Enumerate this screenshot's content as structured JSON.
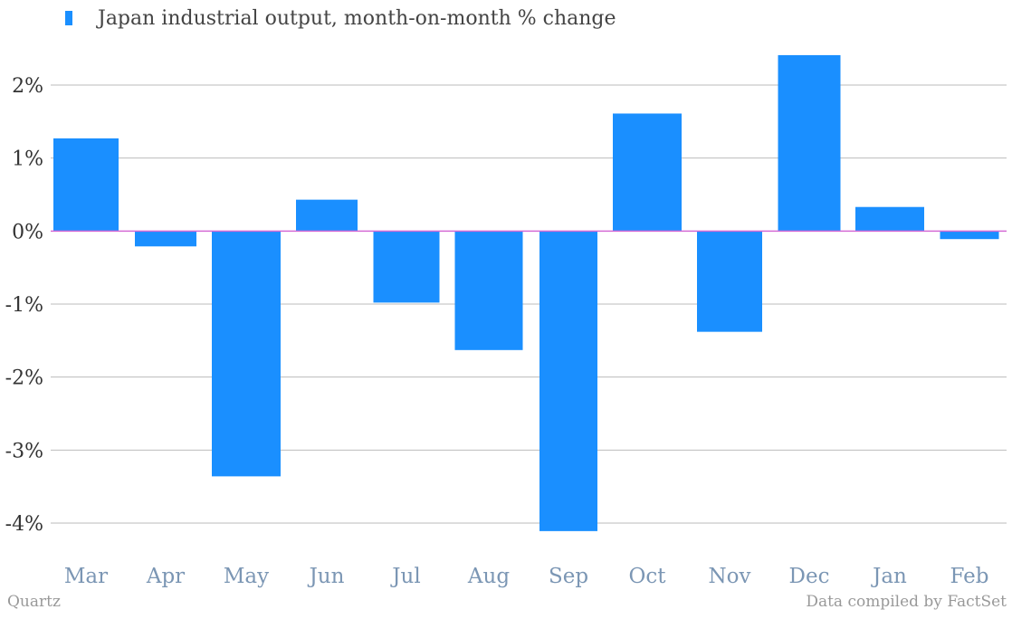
{
  "chart_data": {
    "type": "bar",
    "categories": [
      "Mar",
      "Apr",
      "May",
      "Jun",
      "Jul",
      "Aug",
      "Sep",
      "Oct",
      "Nov",
      "Dec",
      "Jan",
      "Feb"
    ],
    "series": [
      {
        "name": "Japan industrial output, month-on-month % change",
        "values": [
          1.27,
          -0.21,
          -3.36,
          0.43,
          -0.98,
          -1.63,
          -4.11,
          1.61,
          -1.38,
          2.41,
          0.33,
          -0.11
        ]
      }
    ],
    "ylim": [
      -4.4,
      2.6
    ],
    "yticks": [
      2,
      1,
      0,
      -1,
      -2,
      -3,
      -4
    ],
    "ytick_labels": [
      "2%",
      "1%",
      "0%",
      "-1%",
      "-2%",
      "-3%",
      "-4%"
    ],
    "grid": true,
    "legend_position": "top-left"
  },
  "colors": {
    "bar": "#1a8fff",
    "zero_line": "#d46bd4",
    "grid": "#bbbbbb",
    "x_tick_text": "#7b96b4",
    "y_tick_text": "#333333"
  },
  "footer": {
    "source_left": "Quartz",
    "source_right": "Data compiled by FactSet"
  }
}
